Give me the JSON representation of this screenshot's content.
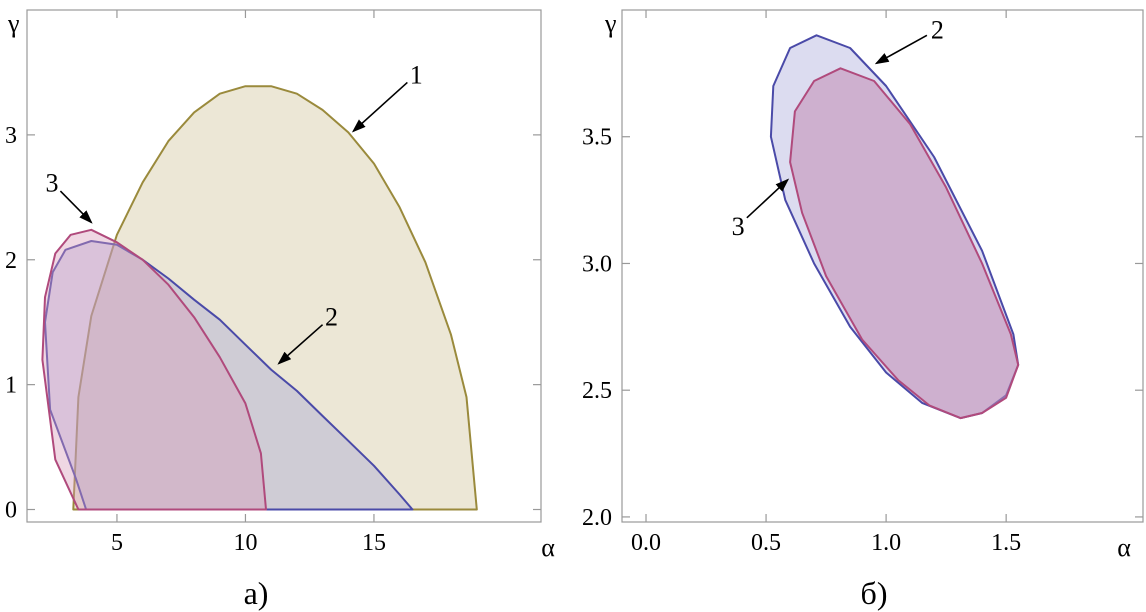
{
  "chart_data": [
    {
      "panel_label": "а)",
      "type": "area",
      "xlabel": "α",
      "ylabel": "γ",
      "xlim": [
        1.5,
        21.5
      ],
      "ylim": [
        -0.1,
        4.0
      ],
      "x_ticks": [
        5,
        10,
        15
      ],
      "y_ticks": [
        0,
        1,
        2,
        3
      ],
      "x_tick_labels": [
        "5",
        "10",
        "15"
      ],
      "y_tick_labels": [
        "0",
        "1",
        "2",
        "3"
      ],
      "grid": false,
      "series": [
        {
          "label": "1",
          "color": "#9a8a3c",
          "fill": "#ebe6d4",
          "fill_opacity": 0.95,
          "points": [
            [
              3.3,
              0
            ],
            [
              3.5,
              0.9
            ],
            [
              4,
              1.55
            ],
            [
              5,
              2.2
            ],
            [
              6,
              2.62
            ],
            [
              7,
              2.95
            ],
            [
              8,
              3.18
            ],
            [
              9,
              3.33
            ],
            [
              10,
              3.39
            ],
            [
              11,
              3.39
            ],
            [
              12,
              3.33
            ],
            [
              13,
              3.2
            ],
            [
              14,
              3.02
            ],
            [
              15,
              2.77
            ],
            [
              16,
              2.42
            ],
            [
              17,
              1.98
            ],
            [
              18,
              1.4
            ],
            [
              18.6,
              0.9
            ],
            [
              19,
              0
            ]
          ],
          "closed_to_baseline": true
        },
        {
          "label": "2",
          "color": "#4a4aa8",
          "fill": "#9c9cd4",
          "fill_opacity": 0.35,
          "points": [
            [
              3.8,
              0
            ],
            [
              3.4,
              0.25
            ],
            [
              2.4,
              0.8
            ],
            [
              2.2,
              1.5
            ],
            [
              2.5,
              1.9
            ],
            [
              3,
              2.08
            ],
            [
              4,
              2.15
            ],
            [
              5,
              2.12
            ],
            [
              6,
              2.0
            ],
            [
              7,
              1.85
            ],
            [
              8,
              1.68
            ],
            [
              9,
              1.52
            ],
            [
              10,
              1.32
            ],
            [
              11,
              1.12
            ],
            [
              12,
              0.95
            ],
            [
              13,
              0.75
            ],
            [
              14,
              0.55
            ],
            [
              15,
              0.35
            ],
            [
              16,
              0.12
            ],
            [
              16.5,
              0
            ]
          ],
          "closed_to_baseline": true
        },
        {
          "label": "3",
          "color": "#b04a7c",
          "fill": "#d89ab8",
          "fill_opacity": 0.4,
          "points": [
            [
              3.5,
              0
            ],
            [
              2.6,
              0.4
            ],
            [
              2.1,
              1.2
            ],
            [
              2.2,
              1.7
            ],
            [
              2.6,
              2.05
            ],
            [
              3.2,
              2.2
            ],
            [
              4,
              2.24
            ],
            [
              5,
              2.14
            ],
            [
              6,
              2.0
            ],
            [
              7,
              1.8
            ],
            [
              8,
              1.54
            ],
            [
              9,
              1.22
            ],
            [
              10,
              0.85
            ],
            [
              10.6,
              0.45
            ],
            [
              10.8,
              0
            ]
          ],
          "closed_to_baseline": true
        }
      ],
      "annotations": [
        {
          "text": "1",
          "from": [
            16.3,
            3.42
          ],
          "to": [
            14.2,
            3.03
          ]
        },
        {
          "text": "2",
          "from": [
            13.0,
            1.48
          ],
          "to": [
            11.3,
            1.17
          ]
        },
        {
          "text": "3",
          "from": [
            2.8,
            2.55
          ],
          "to": [
            4.0,
            2.3
          ]
        }
      ]
    },
    {
      "panel_label": "б)",
      "type": "area",
      "xlabel": "α",
      "ylabel": "γ",
      "xlim": [
        -0.1,
        2.07
      ],
      "ylim": [
        1.98,
        4.0
      ],
      "x_ticks": [
        0.0,
        0.5,
        1.0,
        1.5
      ],
      "y_ticks": [
        2.0,
        2.5,
        3.0,
        3.5
      ],
      "x_tick_labels": [
        "0.0",
        "0.5",
        "1.0",
        "1.5"
      ],
      "y_tick_labels": [
        "2.0",
        "2.5",
        "3.0",
        "3.5"
      ],
      "grid": false,
      "series": [
        {
          "label": "2",
          "color": "#4a4aa8",
          "fill": "#9c9cd4",
          "fill_opacity": 0.35,
          "points": [
            [
              0.71,
              3.9
            ],
            [
              0.85,
              3.85
            ],
            [
              1.0,
              3.7
            ],
            [
              1.2,
              3.42
            ],
            [
              1.4,
              3.05
            ],
            [
              1.53,
              2.72
            ],
            [
              1.55,
              2.6
            ],
            [
              1.5,
              2.48
            ],
            [
              1.4,
              2.41
            ],
            [
              1.31,
              2.39
            ],
            [
              1.15,
              2.45
            ],
            [
              1.0,
              2.57
            ],
            [
              0.85,
              2.75
            ],
            [
              0.7,
              3.0
            ],
            [
              0.58,
              3.25
            ],
            [
              0.52,
              3.5
            ],
            [
              0.53,
              3.7
            ],
            [
              0.6,
              3.85
            ],
            [
              0.71,
              3.9
            ]
          ],
          "closed_to_baseline": false
        },
        {
          "label": "3",
          "color": "#b04a7c",
          "fill": "#c28cb4",
          "fill_opacity": 0.55,
          "points": [
            [
              0.81,
              3.77
            ],
            [
              0.95,
              3.72
            ],
            [
              1.1,
              3.55
            ],
            [
              1.25,
              3.3
            ],
            [
              1.4,
              3.0
            ],
            [
              1.52,
              2.72
            ],
            [
              1.55,
              2.6
            ],
            [
              1.5,
              2.47
            ],
            [
              1.4,
              2.41
            ],
            [
              1.31,
              2.39
            ],
            [
              1.18,
              2.44
            ],
            [
              1.05,
              2.54
            ],
            [
              0.9,
              2.7
            ],
            [
              0.75,
              2.95
            ],
            [
              0.65,
              3.2
            ],
            [
              0.6,
              3.4
            ],
            [
              0.62,
              3.6
            ],
            [
              0.7,
              3.72
            ],
            [
              0.81,
              3.77
            ]
          ],
          "closed_to_baseline": false
        }
      ],
      "annotations": [
        {
          "text": "2",
          "from": [
            1.17,
            3.9
          ],
          "to": [
            0.96,
            3.79
          ]
        },
        {
          "text": "3",
          "from": [
            0.42,
            3.18
          ],
          "to": [
            0.59,
            3.33
          ]
        }
      ]
    }
  ]
}
